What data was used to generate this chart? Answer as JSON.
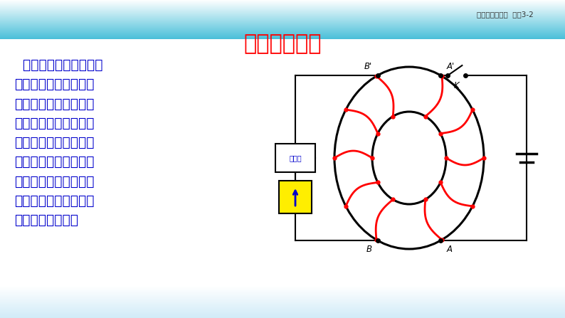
{
  "title": "一、互感现象",
  "title_color": "#FF0000",
  "title_fontsize": 22,
  "body_text": "  在法拉第的实验中，两\n个线圈之间并没有导线\n相连，但当一个线圈中\n的电流发生变化时，它\n所产生的变化的磁场会\n在另一个线圈中产生感\n应电动势。这种现象叫\n做互感。这种感应电动\n势叫做互感电动势",
  "body_color": "#0000CC",
  "body_fontsize": 13.5,
  "header_text": "人民教育出版社  选修3-2",
  "header_color": "#333333",
  "header_fontsize": 7.5
}
